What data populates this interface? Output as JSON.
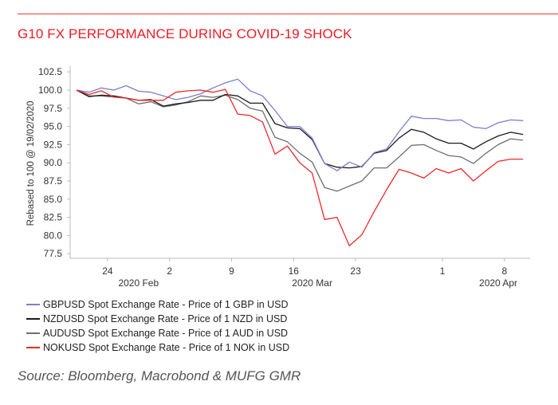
{
  "title": "G10 FX PERFORMANCE DURING COVID-19 SHOCK",
  "source": "Source: Bloomberg, Macrobond & MUFG GMR",
  "chart_data": {
    "type": "line",
    "title": "G10 FX PERFORMANCE DURING COVID-19 SHOCK",
    "ylabel": "Rebased to 100 @ 19/02/2020",
    "xlabel": "",
    "ylim": [
      77.5,
      102.5
    ],
    "yticks": [
      "102.5",
      "100.0",
      "97.5",
      "95.0",
      "92.5",
      "90.0",
      "87.5",
      "85.0",
      "82.5",
      "80.0",
      "77.5"
    ],
    "xtick_labels": [
      {
        "date": "2020-02-24",
        "label": "24"
      },
      {
        "date": "2020-03-02",
        "label": "2"
      },
      {
        "date": "2020-03-09",
        "label": "9"
      },
      {
        "date": "2020-03-16",
        "label": "16"
      },
      {
        "date": "2020-03-23",
        "label": "23"
      },
      {
        "date": "2020-04-01",
        "label": "1"
      },
      {
        "date": "2020-04-08",
        "label": "8"
      }
    ],
    "month_labels": [
      {
        "date": "2020-02-26",
        "label": "2020 Feb"
      },
      {
        "date": "2020-03-17",
        "label": "2020 Mar"
      },
      {
        "date": "2020-04-07",
        "label": "2020 Apr"
      }
    ],
    "grid": false,
    "legend_placement": "bottom",
    "x": [
      "2020-02-19",
      "2020-02-20",
      "2020-02-21",
      "2020-02-24",
      "2020-02-25",
      "2020-02-26",
      "2020-02-27",
      "2020-02-28",
      "2020-03-02",
      "2020-03-03",
      "2020-03-04",
      "2020-03-05",
      "2020-03-06",
      "2020-03-09",
      "2020-03-10",
      "2020-03-11",
      "2020-03-12",
      "2020-03-13",
      "2020-03-16",
      "2020-03-17",
      "2020-03-18",
      "2020-03-19",
      "2020-03-20",
      "2020-03-23",
      "2020-03-24",
      "2020-03-25",
      "2020-03-26",
      "2020-03-27",
      "2020-03-30",
      "2020-03-31",
      "2020-04-01",
      "2020-04-02",
      "2020-04-03",
      "2020-04-06",
      "2020-04-07",
      "2020-04-08",
      "2020-04-09"
    ],
    "series": [
      {
        "name": "GBPUSD Spot Exchange Rate - Price of 1 GBP in USD",
        "color": "#7b7fcf",
        "values": [
          100,
          99.7,
          100.3,
          100,
          100.6,
          99.85,
          99.7,
          99.2,
          98.7,
          99.0,
          99.5,
          100.3,
          101,
          101.5,
          99.9,
          99.2,
          97.2,
          95.0,
          95.0,
          93.4,
          89.9,
          88.9,
          90.1,
          89.4,
          91.4,
          91.9,
          94.3,
          96.4,
          96.1,
          96.1,
          95.8,
          95.9,
          94.9,
          94.7,
          95.5,
          95.9,
          95.8
        ]
      },
      {
        "name": "NZDUSD Spot Exchange Rate - Price of 1 NZD in USD",
        "color": "#1a1a1a",
        "values": [
          100,
          99.1,
          99.3,
          99.2,
          98.9,
          98.6,
          98.7,
          97.8,
          98.1,
          98.3,
          98.6,
          98.6,
          99.4,
          99.2,
          98.2,
          98.2,
          95.4,
          94.8,
          94.7,
          93.2,
          89.9,
          89.4,
          89.3,
          89.5,
          91.3,
          91.7,
          93.4,
          94.6,
          94.2,
          93.3,
          92.7,
          92.7,
          91.9,
          92.9,
          93.7,
          94.2,
          93.9
        ]
      },
      {
        "name": "AUDUSD Spot Exchange Rate - Price of 1 AUD in USD",
        "color": "#6e6e6e",
        "values": [
          100,
          99.2,
          99.2,
          99.05,
          98.9,
          98.1,
          98.4,
          97.7,
          97.95,
          98.4,
          99.2,
          99.0,
          99.3,
          98.7,
          97.5,
          97.1,
          93.5,
          92.9,
          91.3,
          90.1,
          86.6,
          86.1,
          86.8,
          87.5,
          89.3,
          89.3,
          90.8,
          92.4,
          92.5,
          91.7,
          91.0,
          90.8,
          89.9,
          91.3,
          92.5,
          93.3,
          93.1
        ]
      },
      {
        "name": "NOKUSD Spot Exchange Rate - Price of 1 NOK in USD",
        "color": "#f0282a",
        "values": [
          100,
          99.4,
          99.9,
          99.05,
          98.9,
          98.6,
          98.6,
          98.6,
          99.7,
          99.9,
          100,
          99.7,
          100.1,
          96.7,
          96.5,
          95.6,
          91.2,
          92.3,
          90.0,
          88.6,
          82.2,
          82.5,
          78.6,
          80.1,
          83.3,
          86.3,
          89.1,
          88.6,
          87.9,
          89.2,
          88.6,
          89.2,
          87.5,
          88.9,
          90.2,
          90.5,
          90.5
        ]
      }
    ]
  }
}
